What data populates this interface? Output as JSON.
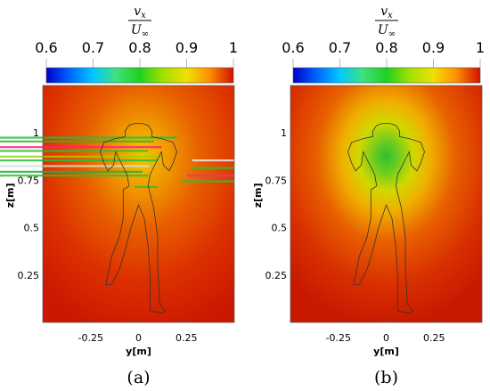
{
  "chart_data": [
    {
      "type": "heatmap",
      "panel_label": "(a)",
      "colorbar": {
        "label_numerator": "v",
        "label_numerator_sub": "x",
        "label_denominator": "U",
        "label_denominator_sub": "∞",
        "range": [
          0.6,
          1.0
        ],
        "tick_values": [
          0.6,
          0.7,
          0.8,
          0.9,
          1.0
        ],
        "tick_labels": [
          "0.6",
          "0.7",
          "0.8",
          "0.9",
          "1"
        ],
        "colors": [
          "#0000c8",
          "#00a0ff",
          "#00e0d0",
          "#20d020",
          "#a0e000",
          "#f0e000",
          "#ff9000",
          "#e02000",
          "#c00000"
        ]
      },
      "xlabel": "y[m]",
      "ylabel": "z[m]",
      "x_ticks": [
        -0.25,
        0,
        0.25
      ],
      "x_tick_labels": [
        "-0.25",
        "0",
        "0.25"
      ],
      "y_ticks": [
        0.25,
        0.5,
        0.75,
        1.0
      ],
      "y_tick_labels": [
        "0.25",
        "0.5",
        "0.75",
        "1"
      ],
      "xlim": [
        -0.5,
        0.5
      ],
      "ylim": [
        0.0,
        1.25
      ],
      "field": {
        "center_y": 0.0,
        "center_z": 0.88,
        "min_value": 0.87,
        "max_value": 0.98
      },
      "artifacts": "horizontal green streaks"
    },
    {
      "type": "heatmap",
      "panel_label": "(b)",
      "colorbar": {
        "label_numerator": "v",
        "label_numerator_sub": "x",
        "label_denominator": "U",
        "label_denominator_sub": "∞",
        "range": [
          0.6,
          1.0
        ],
        "tick_values": [
          0.6,
          0.7,
          0.8,
          0.9,
          1.0
        ],
        "tick_labels": [
          "0.6",
          "0.7",
          "0.8",
          "0.9",
          "1"
        ],
        "colors": [
          "#0000c8",
          "#00a0ff",
          "#00e0d0",
          "#20d020",
          "#a0e000",
          "#f0e000",
          "#ff9000",
          "#e02000",
          "#c00000"
        ]
      },
      "xlabel": "y[m]",
      "ylabel": "z[m]",
      "x_ticks": [
        -0.25,
        0,
        0.25
      ],
      "x_tick_labels": [
        "-0.25",
        "0",
        "0.25"
      ],
      "y_ticks": [
        0.25,
        0.5,
        0.75,
        1.0
      ],
      "y_tick_labels": [
        "0.25",
        "0.5",
        "0.75",
        "1"
      ],
      "xlim": [
        -0.5,
        0.5
      ],
      "ylim": [
        0.0,
        1.25
      ],
      "field": {
        "center_y": 0.0,
        "center_z": 0.88,
        "min_value": 0.8,
        "max_value": 0.98
      }
    }
  ]
}
